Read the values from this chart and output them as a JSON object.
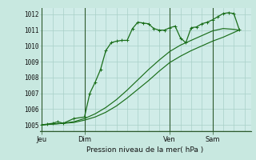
{
  "background_color": "#c8e8e0",
  "plot_bg": "#d0ece8",
  "grid_color": "#a8d0c8",
  "line_color": "#1a6e1a",
  "dark_line": "#2d5a2d",
  "title": "Pression niveau de la mer( hPa )",
  "ylabel_ticks": [
    1005,
    1006,
    1007,
    1008,
    1009,
    1010,
    1011,
    1012
  ],
  "ylim": [
    1004.6,
    1012.4
  ],
  "day_labels": [
    "Jeu",
    "Dim",
    "Ven",
    "Sam"
  ],
  "day_positions": [
    0.0,
    2.0,
    6.0,
    8.0
  ],
  "xlim": [
    -0.1,
    9.8
  ],
  "series1_x": [
    0.0,
    0.25,
    0.5,
    0.75,
    1.0,
    1.5,
    2.0,
    2.25,
    2.5,
    2.75,
    3.0,
    3.25,
    3.5,
    3.75,
    4.0,
    4.25,
    4.5,
    4.75,
    5.0,
    5.25,
    5.5,
    5.75,
    6.0,
    6.25,
    6.5,
    6.75,
    7.0,
    7.25,
    7.5,
    7.75,
    8.0,
    8.25,
    8.5,
    8.75,
    9.0,
    9.25
  ],
  "series1_y": [
    1005.0,
    1005.05,
    1005.1,
    1005.2,
    1005.1,
    1005.4,
    1005.5,
    1007.0,
    1007.7,
    1008.5,
    1009.7,
    1010.2,
    1010.3,
    1010.35,
    1010.35,
    1011.1,
    1011.5,
    1011.45,
    1011.4,
    1011.1,
    1011.0,
    1011.0,
    1011.15,
    1011.25,
    1010.5,
    1010.2,
    1011.15,
    1011.2,
    1011.4,
    1011.5,
    1011.65,
    1011.85,
    1012.05,
    1012.1,
    1012.05,
    1011.05
  ],
  "series2_x": [
    0.0,
    0.5,
    1.0,
    1.5,
    2.0,
    2.5,
    3.0,
    3.5,
    4.0,
    4.5,
    5.0,
    5.5,
    6.0,
    6.5,
    7.0,
    7.5,
    8.0,
    8.5,
    9.0,
    9.25
  ],
  "series2_y": [
    1005.0,
    1005.05,
    1005.1,
    1005.2,
    1005.4,
    1005.7,
    1006.1,
    1006.6,
    1007.2,
    1007.85,
    1008.5,
    1009.1,
    1009.65,
    1010.05,
    1010.35,
    1010.65,
    1010.95,
    1011.1,
    1011.05,
    1011.0
  ],
  "series3_x": [
    0.0,
    0.5,
    1.0,
    1.5,
    2.0,
    2.5,
    3.0,
    3.5,
    4.0,
    4.5,
    5.0,
    5.5,
    6.0,
    6.5,
    7.0,
    7.5,
    8.0,
    8.5,
    9.0,
    9.25
  ],
  "series3_y": [
    1005.0,
    1005.05,
    1005.1,
    1005.15,
    1005.3,
    1005.5,
    1005.8,
    1006.2,
    1006.7,
    1007.25,
    1007.8,
    1008.4,
    1008.95,
    1009.35,
    1009.7,
    1010.0,
    1010.3,
    1010.55,
    1010.85,
    1011.0
  ]
}
